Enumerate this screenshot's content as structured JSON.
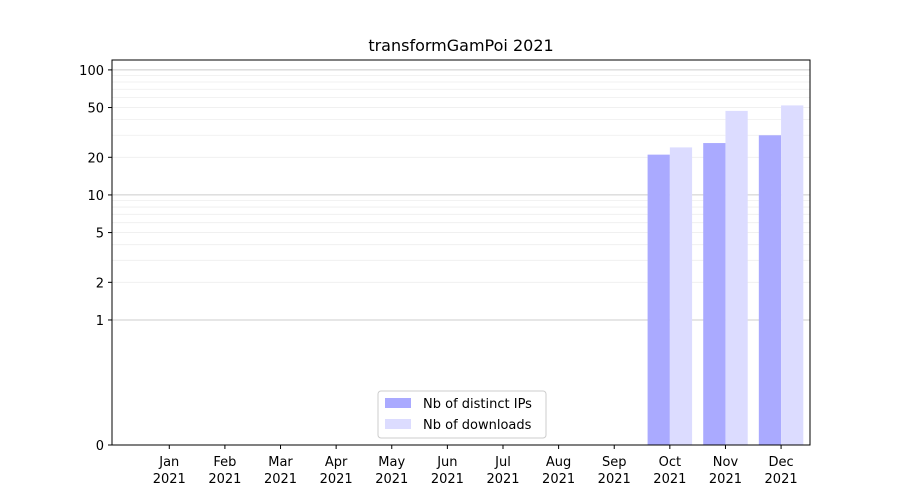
{
  "chart_data": {
    "type": "bar",
    "title": "transformGamPoi 2021",
    "xlabel": "",
    "ylabel": "",
    "yscale": "symlog",
    "ylim": [
      0,
      120
    ],
    "yticks": [
      0,
      1,
      2,
      5,
      10,
      20,
      50,
      100
    ],
    "categories": [
      [
        "Jan",
        "2021"
      ],
      [
        "Feb",
        "2021"
      ],
      [
        "Mar",
        "2021"
      ],
      [
        "Apr",
        "2021"
      ],
      [
        "May",
        "2021"
      ],
      [
        "Jun",
        "2021"
      ],
      [
        "Jul",
        "2021"
      ],
      [
        "Aug",
        "2021"
      ],
      [
        "Sep",
        "2021"
      ],
      [
        "Oct",
        "2021"
      ],
      [
        "Nov",
        "2021"
      ],
      [
        "Dec",
        "2021"
      ]
    ],
    "series": [
      {
        "name": "Nb of distinct IPs",
        "color": "#aaaaff",
        "values": [
          0,
          0,
          0,
          0,
          0,
          0,
          0,
          0,
          0,
          21,
          26,
          30
        ]
      },
      {
        "name": "Nb of downloads",
        "color": "#dcdcff",
        "values": [
          0,
          0,
          0,
          0,
          0,
          0,
          0,
          0,
          0,
          24,
          47,
          52
        ]
      }
    ],
    "grid": true,
    "legend_position": "bottom-center"
  }
}
